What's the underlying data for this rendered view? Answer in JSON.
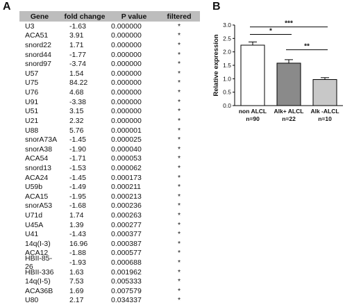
{
  "panels": {
    "a_letter": "A",
    "b_letter": "B"
  },
  "table": {
    "headers": [
      "Gene",
      "fold change",
      "P value",
      "filtered"
    ],
    "rows": [
      [
        "U3",
        "-1.63",
        "0.000000",
        "*"
      ],
      [
        "ACA51",
        "3.91",
        "0.000000",
        "*"
      ],
      [
        "snord22",
        "1.71",
        "0.000000",
        "*"
      ],
      [
        "snord44",
        "-1.77",
        "0.000000",
        "*"
      ],
      [
        "snord97",
        "-3.74",
        "0.000000",
        "*"
      ],
      [
        "U57",
        "1.54",
        "0.000000",
        "*"
      ],
      [
        "U75",
        "84.22",
        "0.000000",
        "*"
      ],
      [
        "U76",
        "4.68",
        "0.000000",
        "*"
      ],
      [
        "U91",
        "-3.38",
        "0.000000",
        "*"
      ],
      [
        "U51",
        "3.15",
        "0.000000",
        "*"
      ],
      [
        "U21",
        "2.32",
        "0.000000",
        "*"
      ],
      [
        "U88",
        "5.76",
        "0.000001",
        "*"
      ],
      [
        "snorA73A",
        "-1.45",
        "0.000025",
        "*"
      ],
      [
        "snorA38",
        "-1.90",
        "0.000040",
        "*"
      ],
      [
        "ACA54",
        "-1.71",
        "0.000053",
        "*"
      ],
      [
        "snord13",
        "-1.53",
        "0.000062",
        "*"
      ],
      [
        "ACA24",
        "-1.45",
        "0.000173",
        "*"
      ],
      [
        "U59b",
        "-1.49",
        "0.000211",
        "*"
      ],
      [
        "ACA15",
        "-1.95",
        "0.000213",
        "*"
      ],
      [
        "snorA53",
        "-1.68",
        "0.000236",
        "*"
      ],
      [
        "U71d",
        "1.74",
        "0.000263",
        "*"
      ],
      [
        "U45A",
        "1.39",
        "0.000277",
        "*"
      ],
      [
        "U41",
        "-1.43",
        "0.000377",
        "*"
      ],
      [
        "14q(I-3)",
        "16.96",
        "0.000387",
        "*"
      ],
      [
        "ACA12",
        "-1.88",
        "0.000577",
        "*"
      ],
      [
        "HBII-85-26",
        "-1.93",
        "0.000688",
        "*"
      ],
      [
        "HBII-336",
        "1.63",
        "0.001962",
        "*"
      ],
      [
        "14q(I-5)",
        "7.53",
        "0.005333",
        "*"
      ],
      [
        "ACA36B",
        "1.69",
        "0.007579",
        "*"
      ],
      [
        "U80",
        "2.17",
        "0.034337",
        "*"
      ]
    ]
  },
  "chart_data": {
    "type": "bar",
    "categories": [
      "non ALCL",
      "Alk+ ALCL",
      "Alk -ALCL"
    ],
    "category_subtitles": [
      "n=90",
      "n=22",
      "n=10"
    ],
    "values": [
      2.25,
      1.58,
      0.97
    ],
    "errors": [
      0.12,
      0.13,
      0.07
    ],
    "bar_colors": [
      "#ffffff",
      "#8a8a8a",
      "#c8c8c8"
    ],
    "ylabel": "Relative expression",
    "ylim": [
      0,
      3.0
    ],
    "yticks": [
      "0.0",
      "0.5",
      "1.0",
      "1.5",
      "2.0",
      "2.5",
      "3.0"
    ],
    "significance": [
      {
        "from": 0,
        "to": 2,
        "label": "***"
      },
      {
        "from": 0,
        "to": 1,
        "label": "*"
      },
      {
        "from": 1,
        "to": 2,
        "label": "**"
      }
    ]
  }
}
